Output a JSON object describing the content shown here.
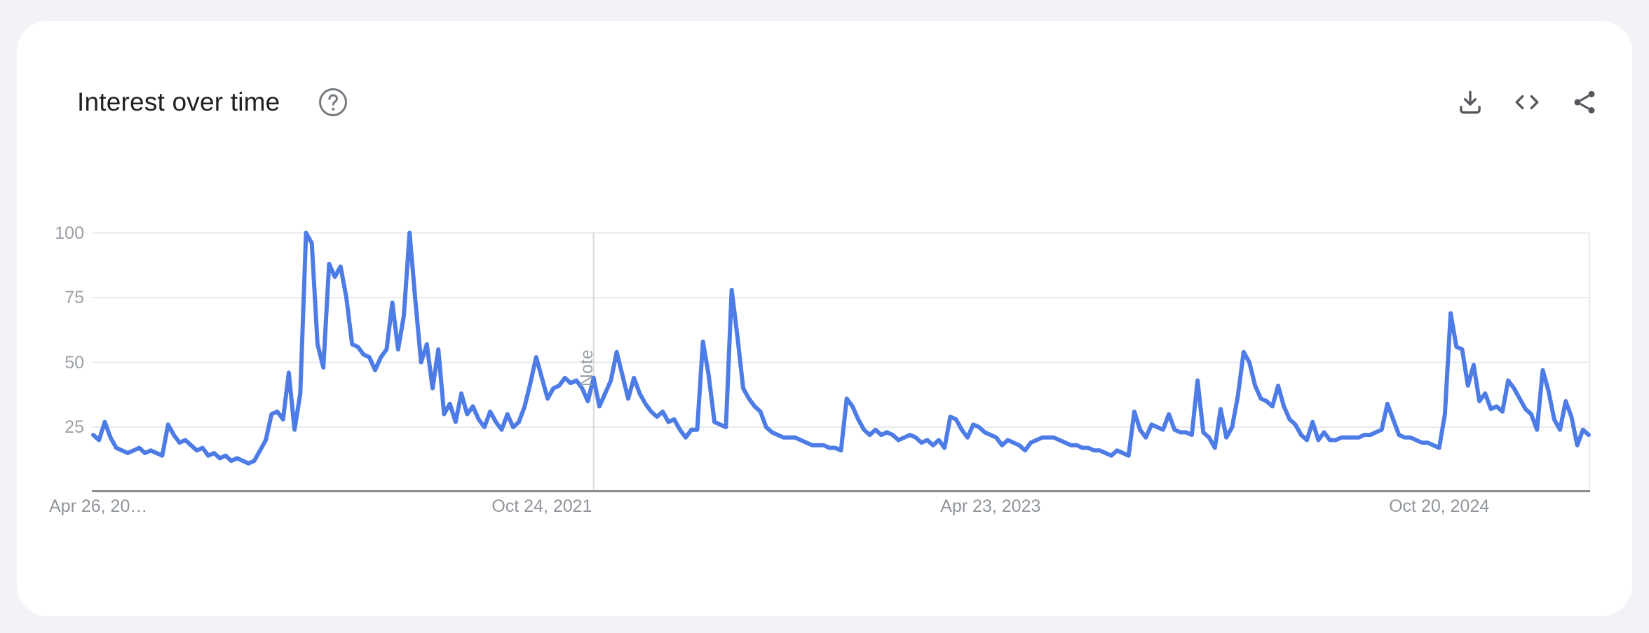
{
  "card": {
    "title": "Interest over time"
  },
  "toolbar": {
    "icons": [
      "help-icon",
      "download-icon",
      "embed-code-icon",
      "share-icon"
    ]
  },
  "colors": {
    "page_bg": "#f1f3f6",
    "card_bg": "#ffffff",
    "title_text": "#202124",
    "line": "#4d7ce6",
    "grid": "#e8eaed",
    "axis": "#888c90",
    "x_label": "#8f959b",
    "y_label": "#9aa0a6",
    "note_line": "#d8dadd",
    "note_text": "#9aa0a6",
    "icon": "#54575b",
    "help_icon": "#757a80"
  },
  "chart_data": {
    "type": "line",
    "title": "Interest over time",
    "frequency": "weekly",
    "x_axis": {
      "ticks": [
        {
          "label": "Apr 26, 20…",
          "week": 0
        },
        {
          "label": "Oct 24, 2021",
          "week": 78
        },
        {
          "label": "Apr 23, 2023",
          "week": 156
        },
        {
          "label": "Oct 20, 2024",
          "week": 234
        }
      ]
    },
    "y_axis": {
      "ticks": [
        100,
        75,
        50,
        25
      ],
      "range": [
        0,
        100
      ],
      "grid": true
    },
    "annotation": {
      "label": "Note",
      "week": 87
    },
    "legend_position": "none",
    "values": [
      22,
      20,
      27,
      21,
      17,
      16,
      15,
      16,
      17,
      15,
      16,
      15,
      14,
      26,
      22,
      19,
      20,
      18,
      16,
      17,
      14,
      15,
      13,
      14,
      12,
      13,
      12,
      11,
      12,
      16,
      20,
      30,
      31,
      28,
      46,
      24,
      38,
      100,
      96,
      57,
      48,
      88,
      83,
      87,
      75,
      57,
      56,
      53,
      52,
      47,
      52,
      55,
      73,
      55,
      68,
      100,
      74,
      50,
      57,
      40,
      55,
      30,
      34,
      27,
      38,
      30,
      33,
      28,
      25,
      31,
      27,
      24,
      30,
      25,
      27,
      33,
      42,
      52,
      44,
      36,
      40,
      41,
      44,
      42,
      43,
      40,
      35,
      44,
      33,
      38,
      43,
      54,
      45,
      36,
      44,
      38,
      34,
      31,
      29,
      31,
      27,
      28,
      24,
      21,
      24,
      24,
      58,
      45,
      27,
      26,
      25,
      78,
      60,
      40,
      36,
      33,
      31,
      25,
      23,
      22,
      21,
      21,
      21,
      20,
      19,
      18,
      18,
      18,
      17,
      17,
      16,
      36,
      33,
      28,
      24,
      22,
      24,
      22,
      23,
      22,
      20,
      21,
      22,
      21,
      19,
      20,
      18,
      20,
      17,
      29,
      28,
      24,
      21,
      26,
      25,
      23,
      22,
      21,
      18,
      20,
      19,
      18,
      16,
      19,
      20,
      21,
      21,
      21,
      20,
      19,
      18,
      18,
      17,
      17,
      16,
      16,
      15,
      14,
      16,
      15,
      14,
      31,
      24,
      21,
      26,
      25,
      24,
      30,
      24,
      23,
      23,
      22,
      43,
      23,
      21,
      17,
      32,
      21,
      25,
      37,
      54,
      50,
      41,
      36,
      35,
      33,
      41,
      33,
      28,
      26,
      22,
      20,
      27,
      20,
      23,
      20,
      20,
      21,
      21,
      21,
      21,
      22,
      22,
      23,
      24,
      34,
      28,
      22,
      21,
      21,
      20,
      19,
      19,
      18,
      17,
      30,
      69,
      56,
      55,
      41,
      49,
      35,
      38,
      32,
      33,
      31,
      43,
      40,
      36,
      32,
      30,
      24,
      47,
      39,
      28,
      24,
      35,
      29,
      18,
      24,
      22
    ]
  }
}
